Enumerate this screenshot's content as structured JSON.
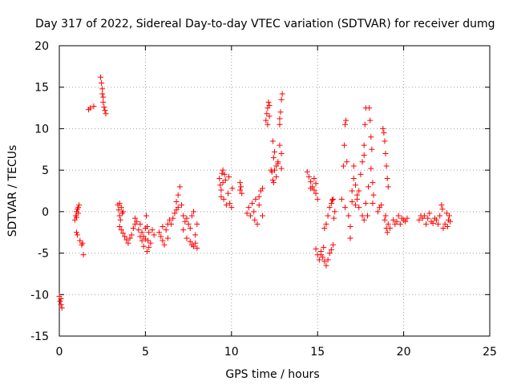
{
  "chart_data": {
    "type": "scatter",
    "title": "Day 317 of 2022, Sidereal Day-to-day VTEC variation (SDTVAR) for receiver dumg",
    "xlabel": "GPS time / hours",
    "ylabel": "SDTVAR / TECUs",
    "xlim": [
      0,
      25
    ],
    "ylim": [
      -15,
      20
    ],
    "xticks": [
      "0",
      "5",
      "10",
      "15",
      "20",
      "25"
    ],
    "yticks": [
      "-15",
      "-10",
      "-5",
      "0",
      "5",
      "10",
      "15",
      "20"
    ],
    "grid": true,
    "legend": "none",
    "marker": "+",
    "series": [
      {
        "name": "SDTVAR",
        "color": "#ff0000",
        "points": [
          [
            0.0,
            -10.2
          ],
          [
            0.05,
            -10.8
          ],
          [
            0.1,
            -11.2
          ],
          [
            0.15,
            -11.6
          ],
          [
            0.1,
            -10.5
          ],
          [
            0.9,
            -1.0
          ],
          [
            0.95,
            -0.5
          ],
          [
            1.0,
            0.0
          ],
          [
            1.05,
            0.3
          ],
          [
            1.1,
            0.5
          ],
          [
            1.15,
            0.8
          ],
          [
            1.0,
            -0.7
          ],
          [
            1.1,
            -0.2
          ],
          [
            1.0,
            -2.5
          ],
          [
            1.05,
            -2.8
          ],
          [
            1.2,
            -3.5
          ],
          [
            1.3,
            -4.0
          ],
          [
            1.35,
            -3.8
          ],
          [
            1.4,
            -5.2
          ],
          [
            1.7,
            12.3
          ],
          [
            1.8,
            12.5
          ],
          [
            2.0,
            12.7
          ],
          [
            2.4,
            16.2
          ],
          [
            2.45,
            15.5
          ],
          [
            2.5,
            14.8
          ],
          [
            2.5,
            14.2
          ],
          [
            2.55,
            13.8
          ],
          [
            2.55,
            13.2
          ],
          [
            2.6,
            12.6
          ],
          [
            2.65,
            12.2
          ],
          [
            2.7,
            11.8
          ],
          [
            3.4,
            0.8
          ],
          [
            3.45,
            0.2
          ],
          [
            3.5,
            -0.5
          ],
          [
            3.5,
            1.0
          ],
          [
            3.55,
            -1.0
          ],
          [
            3.6,
            0.5
          ],
          [
            3.65,
            -0.2
          ],
          [
            3.7,
            0.0
          ],
          [
            3.5,
            -1.8
          ],
          [
            3.6,
            -2.2
          ],
          [
            3.7,
            -2.6
          ],
          [
            3.8,
            -3.0
          ],
          [
            3.9,
            -3.4
          ],
          [
            4.0,
            -3.8
          ],
          [
            4.1,
            -3.2
          ],
          [
            4.2,
            -2.8
          ],
          [
            4.3,
            -2.0
          ],
          [
            4.4,
            -1.5
          ],
          [
            4.5,
            -1.2
          ],
          [
            4.4,
            -0.8
          ],
          [
            4.6,
            -2.2
          ],
          [
            4.7,
            -3.0
          ],
          [
            4.8,
            -3.5
          ],
          [
            4.9,
            -4.2
          ],
          [
            4.7,
            -1.5
          ],
          [
            4.8,
            -2.5
          ],
          [
            4.9,
            -3.0
          ],
          [
            5.0,
            -3.3
          ],
          [
            5.05,
            -0.5
          ],
          [
            5.1,
            -1.8
          ],
          [
            5.1,
            -4.8
          ],
          [
            5.2,
            -4.3
          ],
          [
            5.2,
            -2.5
          ],
          [
            5.3,
            -3.8
          ],
          [
            5.4,
            -2.2
          ],
          [
            5.5,
            -2.8
          ],
          [
            5.0,
            -2.0
          ],
          [
            5.15,
            -3.5
          ],
          [
            5.8,
            -2.5
          ],
          [
            5.9,
            -3.0
          ],
          [
            6.0,
            -3.5
          ],
          [
            6.1,
            -4.0
          ],
          [
            6.0,
            -1.8
          ],
          [
            6.2,
            -2.2
          ],
          [
            6.3,
            -1.5
          ],
          [
            6.4,
            -1.0
          ],
          [
            6.5,
            -1.5
          ],
          [
            6.6,
            -0.8
          ],
          [
            6.7,
            -0.2
          ],
          [
            6.8,
            0.2
          ],
          [
            6.8,
            1.2
          ],
          [
            6.9,
            0.5
          ],
          [
            6.9,
            2.0
          ],
          [
            6.3,
            -3.2
          ],
          [
            7.0,
            3.0
          ],
          [
            7.1,
            0.8
          ],
          [
            7.2,
            -0.5
          ],
          [
            7.3,
            -1.2
          ],
          [
            7.4,
            -0.8
          ],
          [
            7.5,
            -1.5
          ],
          [
            7.6,
            -2.0
          ],
          [
            7.7,
            -0.5
          ],
          [
            7.8,
            0.0
          ],
          [
            7.2,
            -2.2
          ],
          [
            7.4,
            -3.2
          ],
          [
            7.6,
            -3.6
          ],
          [
            7.7,
            -4.0
          ],
          [
            7.8,
            -4.2
          ],
          [
            7.9,
            -3.8
          ],
          [
            7.9,
            -2.8
          ],
          [
            8.0,
            -4.4
          ],
          [
            8.0,
            -1.5
          ],
          [
            9.3,
            4.0
          ],
          [
            9.35,
            3.2
          ],
          [
            9.4,
            2.6
          ],
          [
            9.45,
            4.6
          ],
          [
            9.5,
            5.0
          ],
          [
            9.55,
            1.5
          ],
          [
            9.6,
            4.5
          ],
          [
            9.65,
            3.8
          ],
          [
            9.7,
            0.8
          ],
          [
            9.8,
            2.2
          ],
          [
            9.9,
            1.0
          ],
          [
            10.0,
            0.5
          ],
          [
            9.4,
            1.8
          ],
          [
            9.5,
            3.5
          ],
          [
            10.05,
            2.8
          ],
          [
            9.85,
            4.2
          ],
          [
            10.5,
            3.5
          ],
          [
            10.55,
            3.0
          ],
          [
            10.6,
            2.2
          ],
          [
            10.5,
            2.6
          ],
          [
            10.9,
            -0.2
          ],
          [
            11.0,
            0.5
          ],
          [
            11.1,
            -0.5
          ],
          [
            11.2,
            1.0
          ],
          [
            11.3,
            0.0
          ],
          [
            11.35,
            -1.0
          ],
          [
            11.4,
            1.5
          ],
          [
            11.5,
            -1.5
          ],
          [
            11.6,
            0.8
          ],
          [
            11.6,
            1.8
          ],
          [
            11.7,
            2.5
          ],
          [
            11.8,
            2.8
          ],
          [
            11.8,
            -0.5
          ],
          [
            12.0,
            11.0
          ],
          [
            12.05,
            11.8
          ],
          [
            12.1,
            12.5
          ],
          [
            12.15,
            13.2
          ],
          [
            12.2,
            12.8
          ],
          [
            12.1,
            10.5
          ],
          [
            12.2,
            11.5
          ],
          [
            12.4,
            8.5
          ],
          [
            12.5,
            7.2
          ],
          [
            12.45,
            6.5
          ],
          [
            12.6,
            5.5
          ],
          [
            12.5,
            5.0
          ],
          [
            12.7,
            6.0
          ],
          [
            12.4,
            3.8
          ],
          [
            12.35,
            4.8
          ],
          [
            12.8,
            10.5
          ],
          [
            12.85,
            12.0
          ],
          [
            12.9,
            13.5
          ],
          [
            12.95,
            14.2
          ],
          [
            12.8,
            8.0
          ],
          [
            12.9,
            7.0
          ],
          [
            12.9,
            5.2
          ],
          [
            12.8,
            11.2
          ],
          [
            12.7,
            5.8
          ],
          [
            12.6,
            4.2
          ],
          [
            12.45,
            3.5
          ],
          [
            12.3,
            5.0
          ],
          [
            14.4,
            4.8
          ],
          [
            14.5,
            4.2
          ],
          [
            14.6,
            3.6
          ],
          [
            14.7,
            3.0
          ],
          [
            14.8,
            2.6
          ],
          [
            14.9,
            2.2
          ],
          [
            15.0,
            1.5
          ],
          [
            14.8,
            4.0
          ],
          [
            14.9,
            3.4
          ],
          [
            14.6,
            2.8
          ],
          [
            14.9,
            -4.5
          ],
          [
            15.0,
            -5.2
          ],
          [
            15.1,
            -5.8
          ],
          [
            15.2,
            -4.8
          ],
          [
            15.3,
            -5.5
          ],
          [
            15.4,
            -6.0
          ],
          [
            15.5,
            -6.5
          ],
          [
            15.6,
            -5.8
          ],
          [
            15.7,
            -5.0
          ],
          [
            15.8,
            -4.6
          ],
          [
            15.9,
            -4.0
          ],
          [
            15.35,
            -4.3
          ],
          [
            15.2,
            -5.2
          ],
          [
            15.4,
            -2.0
          ],
          [
            15.5,
            -1.5
          ],
          [
            15.6,
            -0.5
          ],
          [
            15.7,
            0.5
          ],
          [
            15.8,
            1.0
          ],
          [
            15.9,
            1.5
          ],
          [
            16.0,
            0.0
          ],
          [
            15.95,
            -0.8
          ],
          [
            15.85,
            1.4
          ],
          [
            16.4,
            1.5
          ],
          [
            16.5,
            5.5
          ],
          [
            16.55,
            8.0
          ],
          [
            16.6,
            10.5
          ],
          [
            16.65,
            11.0
          ],
          [
            16.7,
            6.0
          ],
          [
            16.6,
            0.5
          ],
          [
            16.8,
            -0.5
          ],
          [
            16.9,
            -1.8
          ],
          [
            16.9,
            -3.2
          ],
          [
            17.0,
            2.5
          ],
          [
            17.1,
            4.0
          ],
          [
            17.2,
            3.2
          ],
          [
            17.3,
            2.0
          ],
          [
            17.1,
            5.5
          ],
          [
            17.2,
            0.8
          ],
          [
            17.3,
            1.5
          ],
          [
            17.4,
            2.5
          ],
          [
            17.0,
            1.2
          ],
          [
            17.5,
            4.5
          ],
          [
            17.6,
            6.0
          ],
          [
            17.7,
            8.0
          ],
          [
            17.75,
            10.5
          ],
          [
            17.8,
            12.5
          ],
          [
            17.7,
            6.8
          ],
          [
            17.8,
            1.0
          ],
          [
            17.9,
            -0.5
          ],
          [
            17.95,
            3.0
          ],
          [
            17.4,
            0.5
          ],
          [
            17.6,
            -0.5
          ],
          [
            17.7,
            -1.0
          ],
          [
            18.0,
            12.5
          ],
          [
            18.05,
            11.0
          ],
          [
            18.1,
            9.0
          ],
          [
            18.15,
            7.5
          ],
          [
            18.1,
            5.2
          ],
          [
            18.2,
            3.5
          ],
          [
            18.25,
            2.0
          ],
          [
            18.2,
            1.0
          ],
          [
            18.5,
            0.0
          ],
          [
            18.6,
            0.5
          ],
          [
            18.7,
            0.8
          ],
          [
            18.8,
            10.0
          ],
          [
            18.85,
            9.5
          ],
          [
            18.9,
            8.5
          ],
          [
            18.95,
            7.0
          ],
          [
            19.0,
            5.5
          ],
          [
            19.05,
            4.0
          ],
          [
            19.1,
            3.0
          ],
          [
            18.9,
            -1.0
          ],
          [
            19.0,
            -2.0
          ],
          [
            19.05,
            -2.5
          ],
          [
            19.1,
            -1.5
          ],
          [
            19.2,
            -2.0
          ],
          [
            18.95,
            -0.5
          ],
          [
            19.4,
            -1.0
          ],
          [
            19.5,
            -1.5
          ],
          [
            19.6,
            -1.2
          ],
          [
            19.7,
            -0.5
          ],
          [
            19.8,
            -1.5
          ],
          [
            19.9,
            -0.8
          ],
          [
            20.0,
            -1.0
          ],
          [
            20.1,
            -1.2
          ],
          [
            20.2,
            -0.8
          ],
          [
            20.9,
            -1.0
          ],
          [
            21.0,
            -0.5
          ],
          [
            21.1,
            -0.8
          ],
          [
            21.2,
            -0.5
          ],
          [
            21.3,
            -1.5
          ],
          [
            21.4,
            -0.8
          ],
          [
            21.5,
            -0.2
          ],
          [
            21.6,
            -1.2
          ],
          [
            21.7,
            -1.4
          ],
          [
            21.8,
            -0.8
          ],
          [
            21.9,
            -1.0
          ],
          [
            22.0,
            -1.5
          ],
          [
            22.1,
            -0.5
          ],
          [
            22.2,
            0.8
          ],
          [
            22.25,
            0.3
          ],
          [
            22.3,
            -2.0
          ],
          [
            22.4,
            -1.5
          ],
          [
            22.5,
            -0.2
          ],
          [
            22.55,
            -1.8
          ],
          [
            22.6,
            -1.0
          ],
          [
            22.65,
            -0.5
          ],
          [
            22.7,
            -1.2
          ]
        ]
      }
    ]
  }
}
